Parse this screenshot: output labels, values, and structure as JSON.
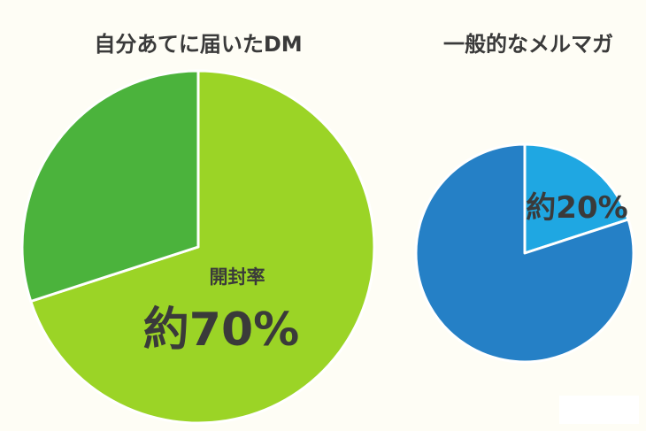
{
  "chart_data": [
    {
      "type": "pie",
      "title": "自分あてに届いたDM",
      "slices": [
        {
          "value": 70,
          "color": "#9bd426"
        },
        {
          "value": 30,
          "color": "#4bb33c"
        }
      ],
      "annotation": {
        "label": "開封率",
        "value_text": "約70%"
      }
    },
    {
      "type": "pie",
      "title": "一般的なメルマガ",
      "slices": [
        {
          "value": 20,
          "color": "#1fa7e2"
        },
        {
          "value": 80,
          "color": "#2580c6"
        }
      ],
      "annotation": {
        "value_text": "約20%"
      }
    }
  ]
}
